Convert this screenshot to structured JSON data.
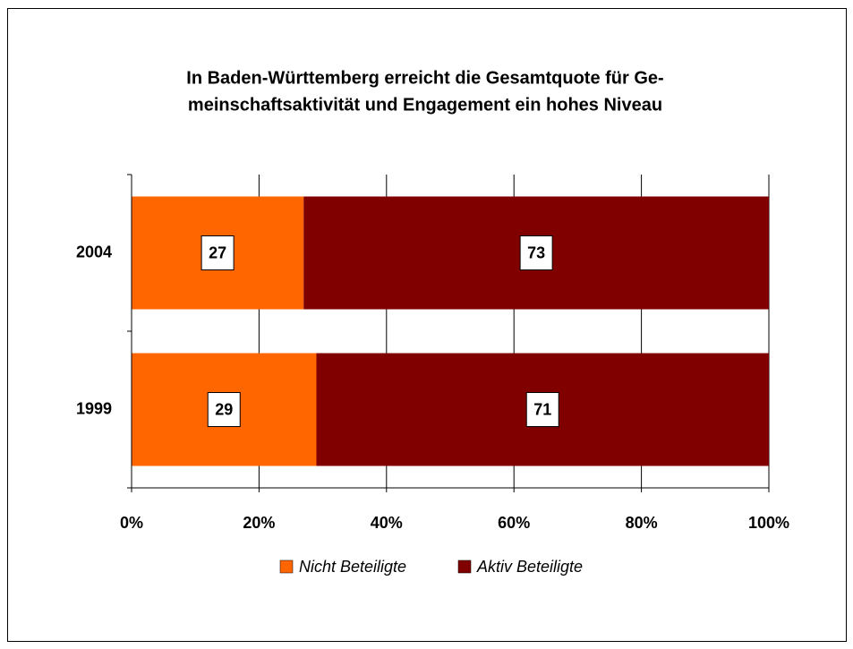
{
  "chart_data": {
    "type": "stacked_bar_horizontal",
    "title": [
      "In Baden-Württemberg erreicht die Gesamtquote für Ge-",
      "meinschaftsaktivität und Engagement ein hohes Niveau"
    ],
    "categories": [
      "2004",
      "1999"
    ],
    "series": [
      {
        "name": "Nicht Beteiligte",
        "color": "#ff6600",
        "values": [
          27,
          29
        ]
      },
      {
        "name": "Aktiv Beteiligte",
        "color": "#800000",
        "values": [
          73,
          71
        ]
      }
    ],
    "xlim": [
      0,
      100
    ],
    "xticks": [
      {
        "value": 0,
        "label": "0%"
      },
      {
        "value": 20,
        "label": "20%"
      },
      {
        "value": 40,
        "label": "40%"
      },
      {
        "value": 60,
        "label": "60%"
      },
      {
        "value": 80,
        "label": "80%"
      },
      {
        "value": 100,
        "label": "100%"
      }
    ],
    "grid": true,
    "legend": "bottom"
  }
}
